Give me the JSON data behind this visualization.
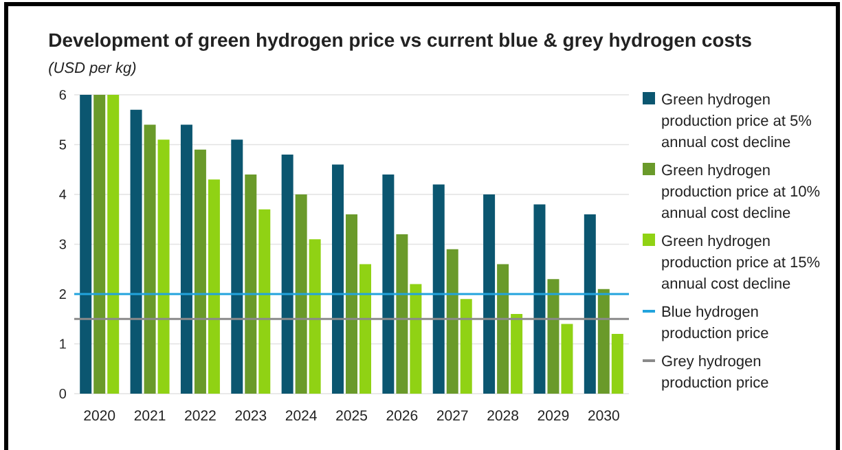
{
  "chart_data": {
    "type": "bar",
    "title": "Development of green hydrogen price vs current blue & grey hydrogen costs",
    "subtitle": "(USD per kg)",
    "categories": [
      "2020",
      "2021",
      "2022",
      "2023",
      "2024",
      "2025",
      "2026",
      "2027",
      "2028",
      "2029",
      "2030"
    ],
    "series": [
      {
        "name": "Green hydrogen production price at 5% annual cost decline",
        "color": "#0b5670",
        "values": [
          6,
          5.7,
          5.4,
          5.1,
          4.8,
          4.6,
          4.4,
          4.2,
          4.0,
          3.8,
          3.6
        ]
      },
      {
        "name": "Green hydrogen production price at 10% annual cost decline",
        "color": "#6a9a2a",
        "values": [
          6,
          5.4,
          4.9,
          4.4,
          4.0,
          3.6,
          3.2,
          2.9,
          2.6,
          2.3,
          2.1
        ]
      },
      {
        "name": "Green hydrogen production price at 15% annual cost decline",
        "color": "#90d214",
        "values": [
          6,
          5.1,
          4.3,
          3.7,
          3.1,
          2.6,
          2.2,
          1.9,
          1.6,
          1.4,
          1.2
        ]
      }
    ],
    "ylim": [
      0,
      6
    ],
    "yticks": [
      0,
      1,
      2,
      3,
      4,
      5,
      6
    ],
    "grid": "y",
    "legend": "right",
    "ref_lines": [
      {
        "axis": "y",
        "value": 2,
        "label": "Blue hydrogen production price",
        "color": "#22a3dd"
      },
      {
        "axis": "y",
        "value": 1.5,
        "label": "Grey hydrogen production price",
        "color": "#8a8a8a"
      }
    ]
  }
}
